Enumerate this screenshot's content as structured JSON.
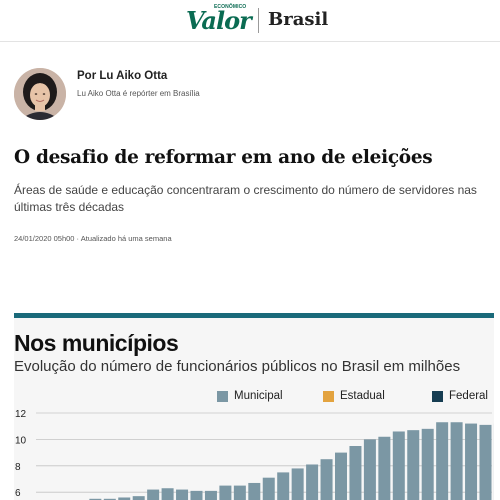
{
  "header": {
    "logo_kicker": "ECONÔMICO",
    "logo": "Valor",
    "section": "Brasil"
  },
  "author": {
    "name": "Por Lu Aiko Otta",
    "bio": "Lu Aiko Otta é repórter em Brasília"
  },
  "article": {
    "title": "O desafio de reformar em ano de eleições",
    "subtitle": "Áreas de saúde e educação concentraram o crescimento do número de servidores nas últimas três décadas",
    "dateline": "24/01/2020 05h00 · Atualizado há uma semana"
  },
  "chart": {
    "heading": "Nos municípios",
    "subheading": "Evolução do número de funcionários públicos no Brasil em milhões"
  },
  "colors": {
    "municipal": "#7b97a4",
    "estadual": "#e3a33f",
    "federal": "#163d52",
    "accent": "#1a6a7a",
    "brand": "#0a6b52"
  },
  "chart_data": {
    "type": "bar",
    "legend": [
      {
        "name": "Municipal",
        "color": "#7b97a4"
      },
      {
        "name": "Estadual",
        "color": "#e3a33f"
      },
      {
        "name": "Federal",
        "color": "#163d52"
      }
    ],
    "series": [
      {
        "name": "Municipal",
        "values": [
          5.1,
          5.3,
          5.4,
          5.5,
          5.5,
          5.6,
          5.7,
          6.2,
          6.3,
          6.2,
          6.1,
          6.1,
          6.5,
          6.5,
          6.7,
          7.1,
          7.5,
          7.8,
          8.1,
          8.5,
          9.0,
          9.5,
          10.0,
          10.2,
          10.6,
          10.7,
          10.8,
          11.3,
          11.3,
          11.2,
          11.1,
          11.2
        ]
      }
    ],
    "yticks": [
      6,
      8,
      10,
      12
    ],
    "ylim": [
      4.5,
      12
    ]
  }
}
